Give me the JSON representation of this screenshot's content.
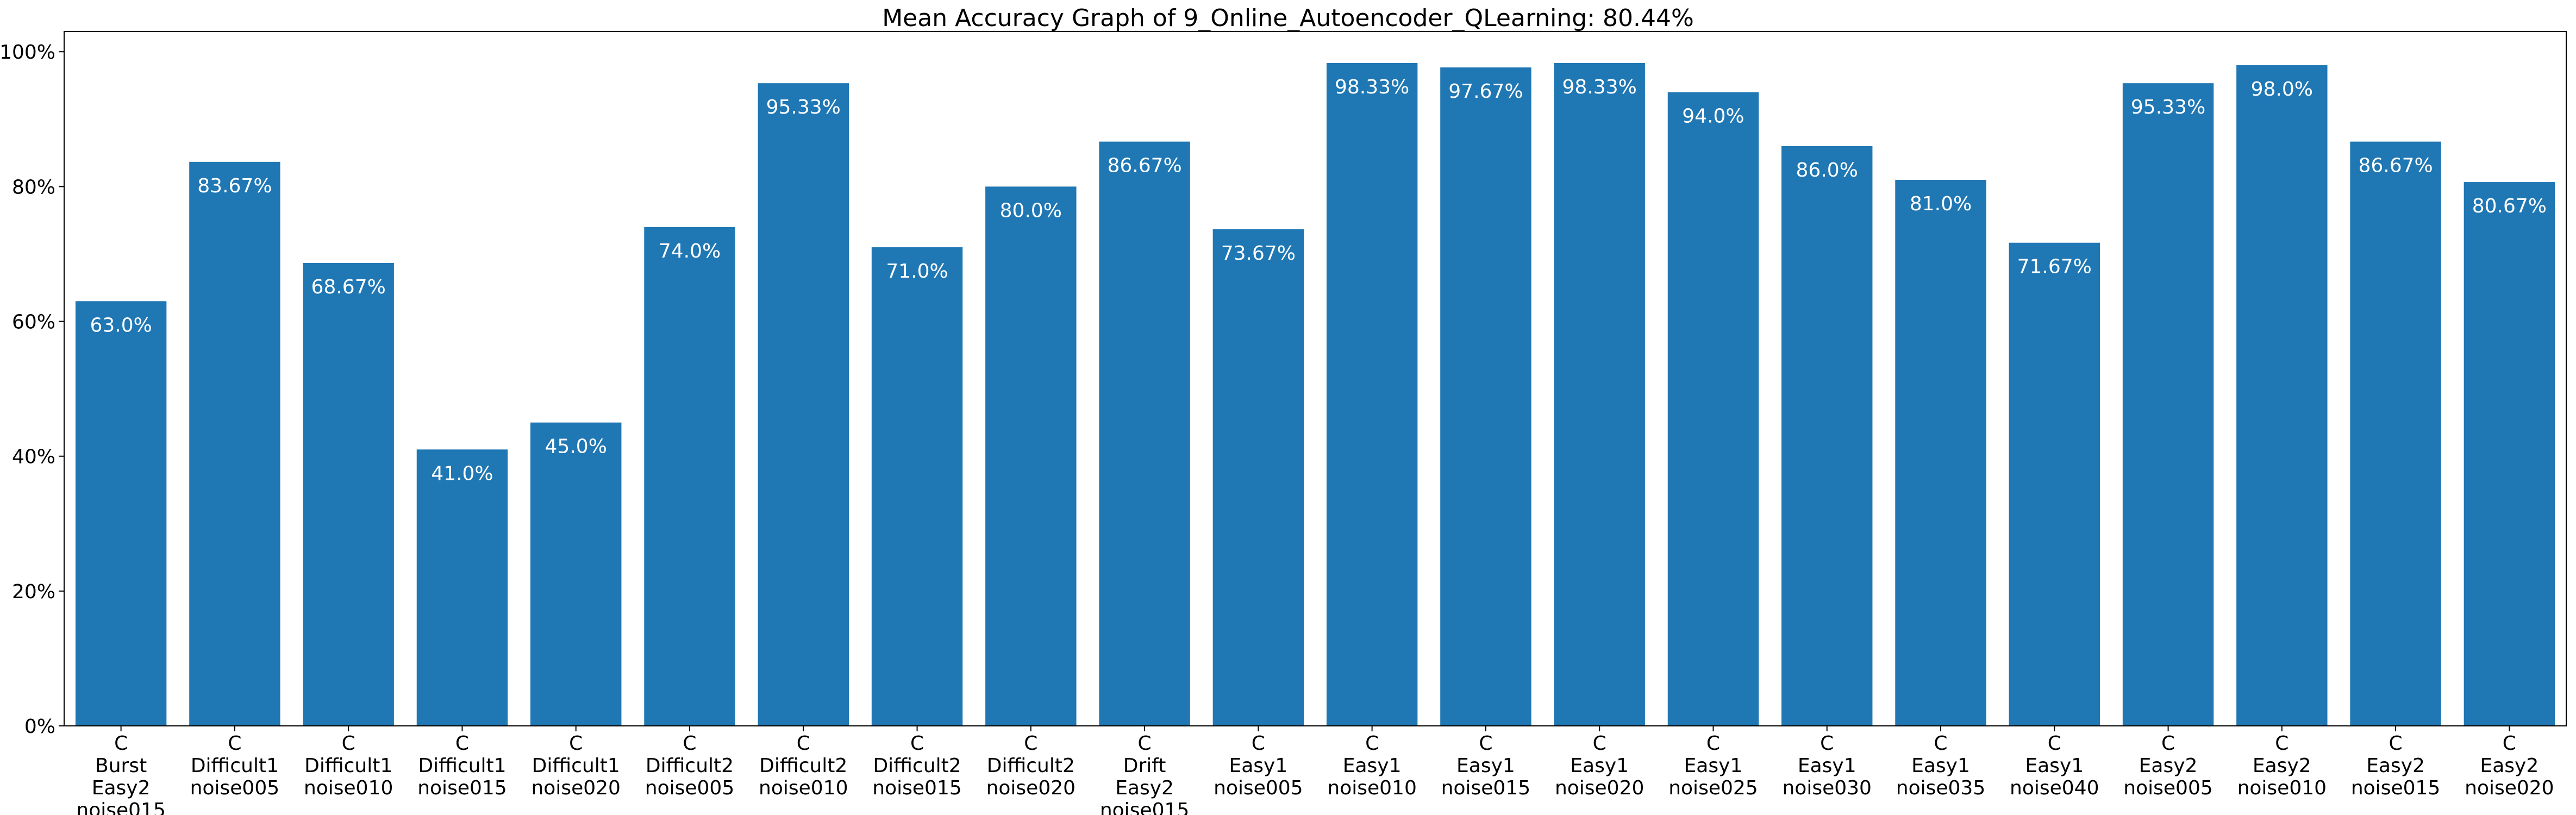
{
  "chart_data": {
    "type": "bar",
    "title": "Mean Accuracy Graph of 9_Online_Autoencoder_QLearning: 80.44%",
    "xlabel": "",
    "ylabel": "",
    "ylim": [
      0,
      103
    ],
    "yticks": [
      0,
      20,
      40,
      60,
      80,
      100
    ],
    "ytick_labels": [
      "0%",
      "20%",
      "40%",
      "60%",
      "80%",
      "100%"
    ],
    "color": "#1f77b4",
    "grid": false,
    "categories": [
      [
        "C",
        "Burst",
        "Easy2",
        "noise015"
      ],
      [
        "C",
        "Difficult1",
        "noise005"
      ],
      [
        "C",
        "Difficult1",
        "noise010"
      ],
      [
        "C",
        "Difficult1",
        "noise015"
      ],
      [
        "C",
        "Difficult1",
        "noise020"
      ],
      [
        "C",
        "Difficult2",
        "noise005"
      ],
      [
        "C",
        "Difficult2",
        "noise010"
      ],
      [
        "C",
        "Difficult2",
        "noise015"
      ],
      [
        "C",
        "Difficult2",
        "noise020"
      ],
      [
        "C",
        "Drift",
        "Easy2",
        "noise015"
      ],
      [
        "C",
        "Easy1",
        "noise005"
      ],
      [
        "C",
        "Easy1",
        "noise010"
      ],
      [
        "C",
        "Easy1",
        "noise015"
      ],
      [
        "C",
        "Easy1",
        "noise020"
      ],
      [
        "C",
        "Easy1",
        "noise025"
      ],
      [
        "C",
        "Easy1",
        "noise030"
      ],
      [
        "C",
        "Easy1",
        "noise035"
      ],
      [
        "C",
        "Easy1",
        "noise040"
      ],
      [
        "C",
        "Easy2",
        "noise005"
      ],
      [
        "C",
        "Easy2",
        "noise010"
      ],
      [
        "C",
        "Easy2",
        "noise015"
      ],
      [
        "C",
        "Easy2",
        "noise020"
      ]
    ],
    "values": [
      63.0,
      83.67,
      68.67,
      41.0,
      45.0,
      74.0,
      95.33,
      71.0,
      80.0,
      86.67,
      73.67,
      98.33,
      97.67,
      98.33,
      94.0,
      86.0,
      81.0,
      71.67,
      95.33,
      98.0,
      86.67,
      80.67
    ],
    "data_labels": [
      "63.0%",
      "83.67%",
      "68.67%",
      "41.0%",
      "45.0%",
      "74.0%",
      "95.33%",
      "71.0%",
      "80.0%",
      "86.67%",
      "73.67%",
      "98.33%",
      "97.67%",
      "98.33%",
      "94.0%",
      "86.0%",
      "81.0%",
      "71.67%",
      "95.33%",
      "98.0%",
      "86.67%",
      "80.67%"
    ]
  }
}
